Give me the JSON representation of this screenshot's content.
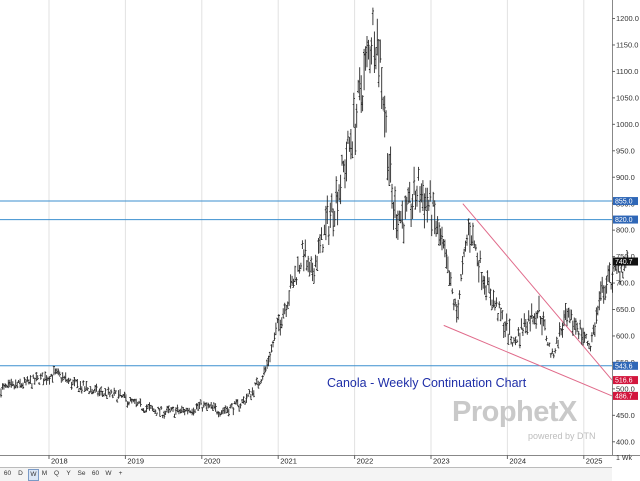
{
  "title": "Canola - Weekly Continuation Chart",
  "logo": {
    "text": "ProphetX",
    "powered_by": "powered by DTN"
  },
  "period_label": "1 Wk",
  "toolbar": [
    "60",
    "D",
    "W",
    "M",
    "Q",
    "Y",
    "Se",
    "60",
    "W",
    "+"
  ],
  "toolbar_selected": "W",
  "chart_data": {
    "type": "ohlc",
    "title": "Canola - Weekly Continuation Chart",
    "xlabel": "",
    "ylabel": "",
    "x_ticks": [
      "2018",
      "2019",
      "2020",
      "2021",
      "2022",
      "2023",
      "2024",
      "2025"
    ],
    "y_ticks": [
      400.0,
      450.0,
      500.0,
      550.0,
      600.0,
      650.0,
      700.0,
      750.0,
      800.0,
      850.0,
      900.0,
      950.0,
      1000.0,
      1050.0,
      1100.0,
      1150.0,
      1200.0
    ],
    "ylim": [
      375,
      1235
    ],
    "grid": "vertical",
    "horizontal_levels": [
      {
        "value": 855.0,
        "label": "855.0"
      },
      {
        "value": 820.0,
        "label": "820.0"
      },
      {
        "value": 543.6,
        "label": "543.6"
      }
    ],
    "price_tags": [
      {
        "value": 740.7,
        "label": "740.7",
        "color": "#111111"
      },
      {
        "value": 516.6,
        "label": "516.6",
        "color": "#d2163d"
      },
      {
        "value": 486.7,
        "label": "486.7",
        "color": "#d2163d"
      }
    ],
    "trendlines": [
      {
        "from": [
          "2023-06",
          850
        ],
        "to": [
          "2025-10",
          516.6
        ]
      },
      {
        "from": [
          "2023-03",
          620
        ],
        "to": [
          "2025-10",
          486.7
        ]
      }
    ],
    "series": [
      {
        "anchors": [
          [
            "2017-01",
            510
          ],
          [
            "2017-06",
            500
          ],
          [
            "2017-10",
            512
          ],
          [
            "2018-02",
            528
          ],
          [
            "2018-05",
            508
          ],
          [
            "2018-09",
            492
          ],
          [
            "2018-12",
            486
          ],
          [
            "2019-03",
            468
          ],
          [
            "2019-07",
            455
          ],
          [
            "2019-10",
            458
          ],
          [
            "2020-01",
            468
          ],
          [
            "2020-04",
            458
          ],
          [
            "2020-07",
            470
          ],
          [
            "2020-09",
            495
          ],
          [
            "2020-11",
            535
          ],
          [
            "2021-01",
            620
          ],
          [
            "2021-03",
            690
          ],
          [
            "2021-05",
            760
          ],
          [
            "2021-06",
            710
          ],
          [
            "2021-09",
            820
          ],
          [
            "2021-11",
            900
          ],
          [
            "2022-01",
            1000
          ],
          [
            "2022-03",
            1120
          ],
          [
            "2022-04",
            1190
          ],
          [
            "2022-05",
            1130
          ],
          [
            "2022-07",
            840
          ],
          [
            "2022-09",
            820
          ],
          [
            "2022-11",
            880
          ],
          [
            "2023-01",
            840
          ],
          [
            "2023-03",
            760
          ],
          [
            "2023-05",
            640
          ],
          [
            "2023-07",
            810
          ],
          [
            "2023-09",
            720
          ],
          [
            "2023-11",
            660
          ],
          [
            "2024-02",
            585
          ],
          [
            "2024-04",
            630
          ],
          [
            "2024-06",
            650
          ],
          [
            "2024-08",
            560
          ],
          [
            "2024-10",
            630
          ],
          [
            "2024-12",
            620
          ],
          [
            "2025-02",
            580
          ],
          [
            "2025-04",
            690
          ],
          [
            "2025-06",
            720
          ],
          [
            "2025-08",
            740.7
          ]
        ]
      }
    ]
  }
}
